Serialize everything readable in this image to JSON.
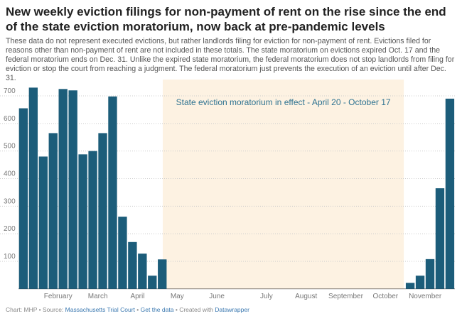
{
  "chart_data": {
    "type": "bar",
    "title": "New weekly eviction filings for non-payment of rent on the rise since the end of the state eviction moratorium, now back at pre-pandemic levels",
    "subtitle": "These data do not represent executed evictions, but rather landlords filing for eviction for non-payment of rent. Evictions filed for reasons other than non-payment of rent are not included in these totals. The state moratorium on evictions expired Oct. 17 and the federal moratorium ends on Dec. 31. Unlike the expired state moratorium, the federal moratorium does not stop landlords from filing for eviction or stop the court from reaching a judgment. The federal moratorium just prevents the execution of an eviction until after Dec. 31.",
    "annotation": "State eviction moratorium in effect - April 20 - October 17",
    "categories": [
      null,
      null,
      null,
      null,
      "February",
      null,
      null,
      null,
      "March",
      null,
      null,
      null,
      "April",
      null,
      null,
      null,
      "May",
      null,
      null,
      null,
      "June",
      null,
      null,
      null,
      null,
      "July",
      null,
      null,
      null,
      "August",
      null,
      null,
      null,
      "September",
      null,
      null,
      null,
      "October",
      null,
      null,
      null,
      "November",
      null,
      null
    ],
    "values": [
      655,
      730,
      480,
      565,
      725,
      720,
      488,
      500,
      565,
      698,
      262,
      170,
      128,
      48,
      107,
      null,
      null,
      null,
      null,
      null,
      null,
      null,
      null,
      null,
      null,
      null,
      null,
      null,
      null,
      null,
      null,
      null,
      null,
      null,
      null,
      null,
      null,
      null,
      null,
      22,
      48,
      108,
      365,
      690
    ],
    "color": "#1c5d7a",
    "ylim": [
      0,
      740
    ],
    "yticks": [
      100,
      200,
      300,
      400,
      500,
      600,
      700
    ],
    "grid": true,
    "footer": {
      "chart": "Chart: MHP",
      "separator": "•",
      "source_label": "Source:",
      "source": "Massachusetts Trial Court",
      "get_data": "Get the data",
      "created": "Created with",
      "tool": "Datawrapper"
    }
  }
}
